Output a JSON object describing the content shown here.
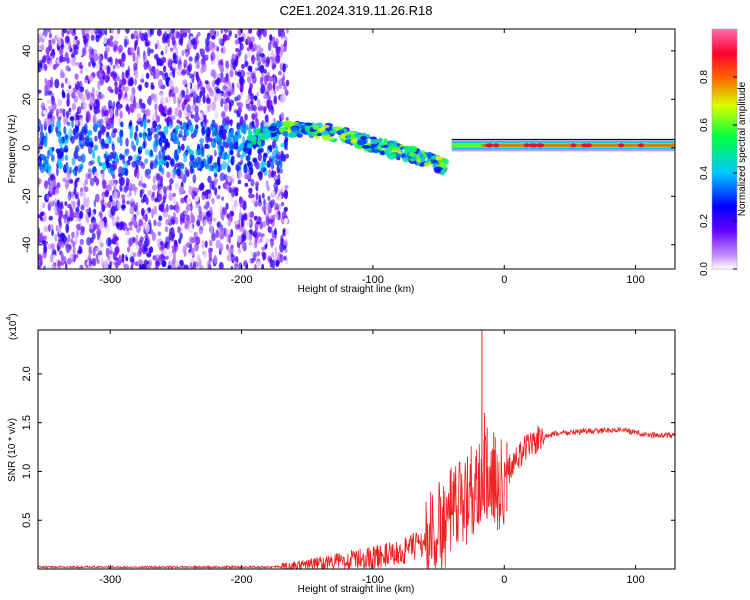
{
  "title": "C2E1.2024.319.11.26.R18",
  "chart_data": [
    {
      "type": "heatmap",
      "xlabel": "Height of straight line (km)",
      "ylabel": "Frequency (Hz)",
      "xlim": [
        -355,
        130
      ],
      "ylim": [
        -50,
        49
      ],
      "xticks": [
        -300,
        -200,
        -100,
        0,
        100
      ],
      "yticks": [
        -40,
        -20,
        0,
        20,
        40
      ],
      "colorbar": {
        "label": "Normalized spectral amplitude",
        "range": [
          0,
          1
        ],
        "ticks": [
          0.0,
          0.2,
          0.4,
          0.6,
          0.8
        ],
        "colors": [
          "#ffffff",
          "#cc99ff",
          "#6600ff",
          "#0000ff",
          "#00c8ff",
          "#00ff40",
          "#d8ff00",
          "#ff6000",
          "#ff0030",
          "#ff6fb0"
        ]
      },
      "features": [
        {
          "segment": "scattered noise",
          "x_range": [
            -355,
            -165
          ],
          "freq_range": [
            -50,
            49
          ],
          "amplitude": 0.25
        },
        {
          "segment": "drifting trace",
          "points": [
            [
              -195,
              3
            ],
            [
              -170,
              8
            ],
            [
              -150,
              8
            ],
            [
              -130,
              6
            ],
            [
              -110,
              3
            ],
            [
              -90,
              0
            ],
            [
              -70,
              -3
            ],
            [
              -55,
              -6
            ],
            [
              -45,
              -8
            ]
          ],
          "amplitude": 0.5
        },
        {
          "segment": "steady trace",
          "x_range": [
            -40,
            130
          ],
          "freq": 1,
          "amplitude": 0.8
        }
      ]
    },
    {
      "type": "line",
      "xlabel": "Height of straight line (km)",
      "ylabel": "SNR (10 * v/v)",
      "y_multiplier": "(x10",
      "y_multiplier_exp": "4",
      "xlim": [
        -355,
        130
      ],
      "ylim": [
        0,
        2.45
      ],
      "xticks": [
        -300,
        -200,
        -100,
        0,
        100
      ],
      "yticks": [
        0.5,
        1.0,
        1.5,
        2.0
      ],
      "color": "#ee2222",
      "series": [
        {
          "x": [
            -355,
            -300,
            -250,
            -200,
            -180,
            -160,
            -140,
            -120,
            -100,
            -80,
            -60,
            -50,
            -40,
            -30,
            -25,
            -20,
            -17,
            -15,
            -10,
            -5,
            0,
            10,
            20,
            30,
            40,
            60,
            80,
            90,
            100,
            110,
            130
          ],
          "y": [
            0.02,
            0.02,
            0.02,
            0.02,
            0.02,
            0.03,
            0.06,
            0.09,
            0.12,
            0.16,
            0.28,
            0.4,
            0.55,
            0.7,
            0.82,
            0.9,
            1.0,
            0.95,
            0.9,
            0.85,
            0.95,
            1.15,
            1.28,
            1.35,
            1.39,
            1.41,
            1.42,
            1.43,
            1.4,
            1.37,
            1.37
          ],
          "spikes": [
            [
              -17,
              2.45
            ],
            [
              -15,
              1.6
            ],
            [
              -13,
              1.45
            ],
            [
              -28,
              1.15
            ],
            [
              -8,
              1.4
            ],
            [
              2,
              1.3
            ]
          ]
        }
      ]
    }
  ]
}
